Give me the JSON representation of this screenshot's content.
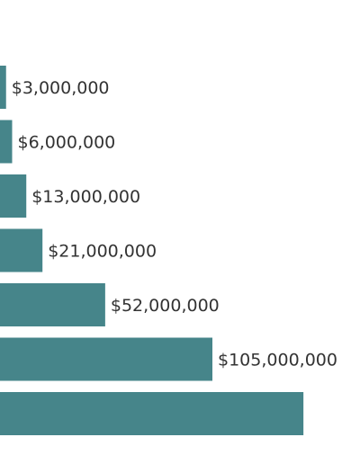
{
  "chart_data": {
    "type": "bar",
    "orientation": "horizontal",
    "bar_color": "#46858a",
    "label_color": "#333333",
    "value_labels": [
      "$3,000,000",
      "$6,000,000",
      "$13,000,000",
      "$21,000,000",
      "$52,000,000",
      "$105,000,000",
      ""
    ],
    "values": [
      3000000,
      6000000,
      13000000,
      21000000,
      52000000,
      105000000,
      150000000
    ],
    "note": "bars are cropped at the left edge of the image; the last value label is not visible"
  }
}
